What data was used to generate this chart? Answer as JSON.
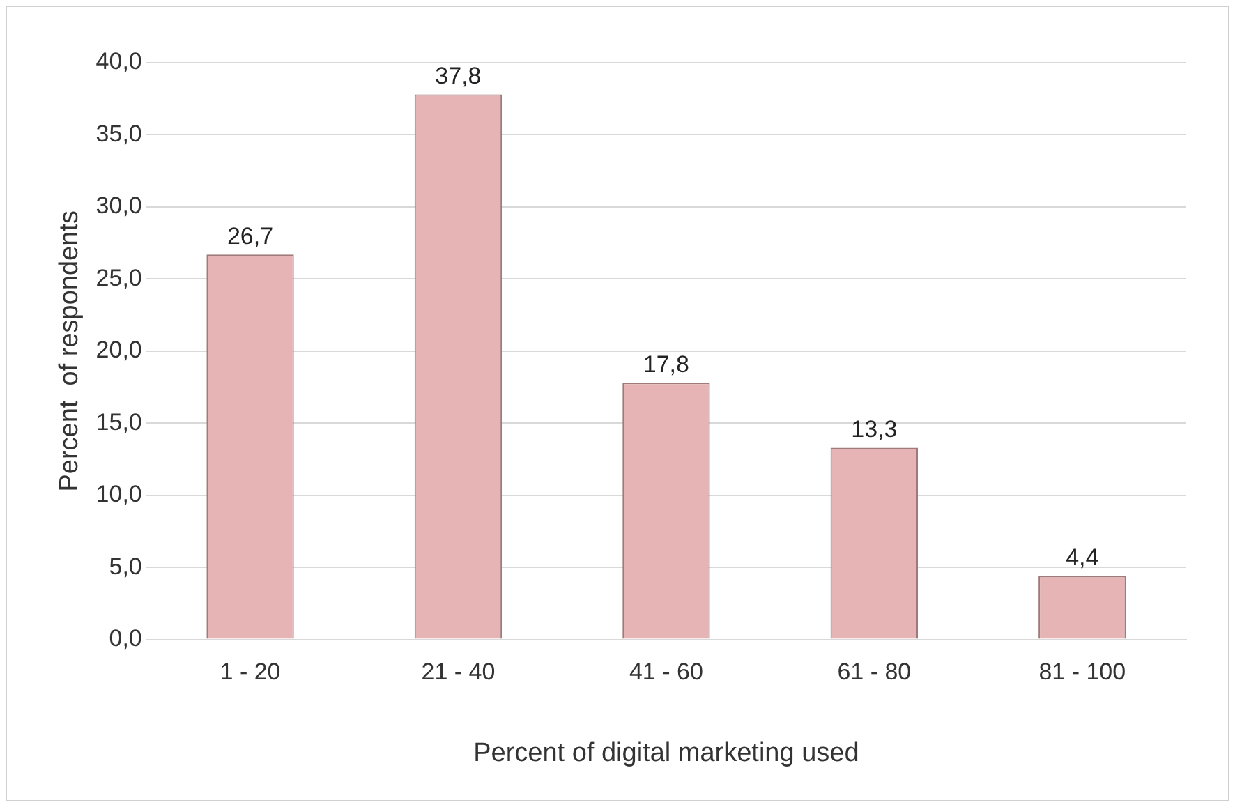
{
  "chart_data": {
    "type": "bar",
    "xlabel": "Percent of digital marketing used",
    "ylabel": "Percent  of respondents",
    "categories": [
      "1 - 20",
      "21 - 40",
      "41 - 60",
      "61 - 80",
      "81 - 100"
    ],
    "values": [
      26.7,
      37.8,
      17.8,
      13.3,
      4.4
    ],
    "value_labels": [
      "26,7",
      "37,8",
      "17,8",
      "13,3",
      "4,4"
    ],
    "color": "#e6b4b4",
    "ylim": [
      0,
      40
    ],
    "yticks": [
      {
        "value": 0,
        "label": "0,0"
      },
      {
        "value": 5,
        "label": "5,0"
      },
      {
        "value": 10,
        "label": "10,0"
      },
      {
        "value": 15,
        "label": "15,0"
      },
      {
        "value": 20,
        "label": "20,0"
      },
      {
        "value": 25,
        "label": "25,0"
      },
      {
        "value": 30,
        "label": "30,0"
      },
      {
        "value": 35,
        "label": "35,0"
      },
      {
        "value": 40,
        "label": "40,0"
      }
    ],
    "grid": "y",
    "legend": false
  }
}
